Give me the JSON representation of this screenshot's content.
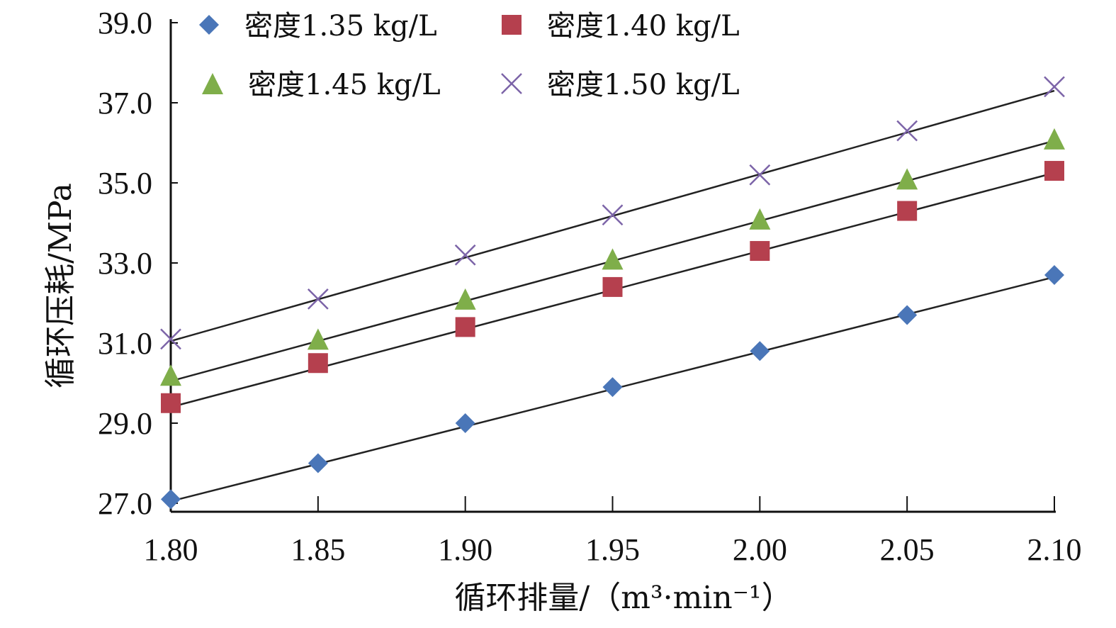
{
  "chart_data": {
    "type": "scatter",
    "title": "",
    "xlabel": "循环排量/（m³·min⁻¹）",
    "ylabel": "循环压耗/MPa",
    "x": [
      1.8,
      1.85,
      1.9,
      1.95,
      2.0,
      2.05,
      2.1
    ],
    "xticks": [
      "1.80",
      "1.85",
      "1.90",
      "1.95",
      "2.00",
      "2.05",
      "2.10"
    ],
    "yticks": [
      "27.0",
      "29.0",
      "31.0",
      "33.0",
      "35.0",
      "37.0",
      "39.0"
    ],
    "xlim": [
      1.8,
      2.1
    ],
    "ylim": [
      27.0,
      39.0
    ],
    "grid": false,
    "legend_position": "top",
    "series": [
      {
        "name": "密度1.35 kg/L",
        "marker": "diamond",
        "color": "#4a76b8",
        "values": [
          27.1,
          28.0,
          29.0,
          29.9,
          30.8,
          31.7,
          32.7
        ],
        "trendline": [
          27.05,
          32.65
        ]
      },
      {
        "name": "密度1.40 kg/L",
        "marker": "square",
        "color": "#b5404e",
        "values": [
          29.5,
          30.5,
          31.4,
          32.4,
          33.3,
          34.3,
          35.3
        ],
        "trendline": [
          29.4,
          35.25
        ]
      },
      {
        "name": "密度1.45 kg/L",
        "marker": "triangle",
        "color": "#7fae4a",
        "values": [
          30.2,
          31.1,
          32.1,
          33.1,
          34.1,
          35.1,
          36.1
        ],
        "trendline": [
          30.05,
          36.05
        ]
      },
      {
        "name": "密度1.50 kg/L",
        "marker": "x",
        "color": "#7c64a8",
        "values": [
          31.1,
          32.1,
          33.2,
          34.2,
          35.2,
          36.3,
          37.4
        ],
        "trendline": [
          31.05,
          37.3
        ]
      }
    ]
  }
}
